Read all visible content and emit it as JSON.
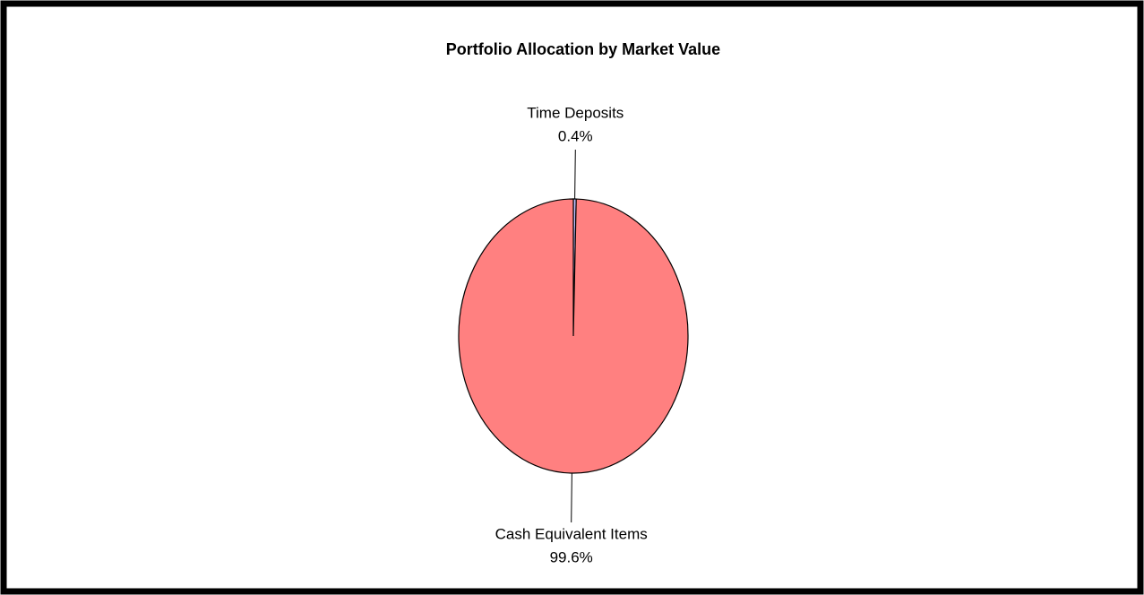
{
  "chart_data": {
    "type": "pie",
    "title": "Portfolio Allocation  by Market Value",
    "categories": [
      "Time Deposits",
      "Cash Equivalent Items"
    ],
    "values": [
      0.4,
      99.6
    ],
    "value_labels": [
      "0.4%",
      "99.6%"
    ],
    "colors": [
      "#c0c0ff",
      "#ff8080"
    ]
  }
}
